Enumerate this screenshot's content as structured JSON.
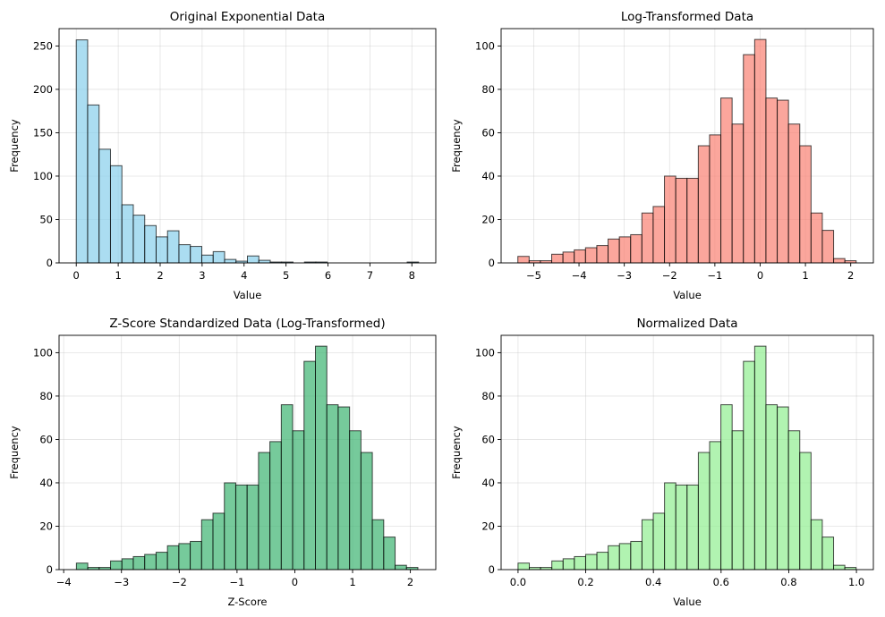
{
  "chart_data": [
    {
      "type": "bar",
      "title": "Original Exponential Data",
      "xlabel": "Value",
      "ylabel": "Frequency",
      "color": "#87ceeb",
      "bin_start": 0.0,
      "bin_width": 0.272,
      "values": [
        257,
        182,
        131,
        112,
        67,
        55,
        43,
        30,
        37,
        21,
        19,
        9,
        13,
        4,
        2,
        8,
        3,
        1,
        1,
        0,
        1,
        1,
        0,
        0,
        0,
        0,
        0,
        0,
        0,
        1
      ],
      "xlim": [
        -0.41,
        8.57
      ],
      "ylim": [
        0,
        270
      ],
      "xticks": [
        0,
        1,
        2,
        3,
        4,
        5,
        6,
        7,
        8
      ],
      "yticks": [
        0,
        50,
        100,
        150,
        200,
        250
      ],
      "grid": true
    },
    {
      "type": "bar",
      "title": "Log-Transformed Data",
      "xlabel": "Value",
      "ylabel": "Frequency",
      "color": "#fa8072",
      "bin_start": -5.35,
      "bin_width": 0.249,
      "values": [
        3,
        1,
        1,
        4,
        5,
        6,
        7,
        8,
        11,
        12,
        13,
        23,
        26,
        40,
        39,
        39,
        54,
        59,
        76,
        64,
        96,
        103,
        76,
        75,
        64,
        54,
        23,
        15,
        2,
        1
      ],
      "xlim": [
        -5.72,
        2.5
      ],
      "ylim": [
        0,
        108
      ],
      "xticks": [
        -5,
        -4,
        -3,
        -2,
        -1,
        0,
        1,
        2
      ],
      "yticks": [
        0,
        20,
        40,
        60,
        80,
        100
      ],
      "grid": true
    },
    {
      "type": "bar",
      "title": "Z-Score Standardized Data (Log-Transformed)",
      "xlabel": "Z-Score",
      "ylabel": "Frequency",
      "color": "#3cb371",
      "bin_start": -3.78,
      "bin_width": 0.197,
      "values": [
        3,
        1,
        1,
        4,
        5,
        6,
        7,
        8,
        11,
        12,
        13,
        23,
        26,
        40,
        39,
        39,
        54,
        59,
        76,
        64,
        96,
        103,
        76,
        75,
        64,
        54,
        23,
        15,
        2,
        1
      ],
      "xlim": [
        -4.08,
        2.44
      ],
      "ylim": [
        0,
        108
      ],
      "xticks": [
        -4,
        -3,
        -2,
        -1,
        0,
        1,
        2
      ],
      "yticks": [
        0,
        20,
        40,
        60,
        80,
        100
      ],
      "grid": true
    },
    {
      "type": "bar",
      "title": "Normalized Data",
      "xlabel": "Value",
      "ylabel": "Frequency",
      "color": "#90ee90",
      "bin_start": 0.0,
      "bin_width": 0.0333,
      "values": [
        3,
        1,
        1,
        4,
        5,
        6,
        7,
        8,
        11,
        12,
        13,
        23,
        26,
        40,
        39,
        39,
        54,
        59,
        76,
        64,
        96,
        103,
        76,
        75,
        64,
        54,
        23,
        15,
        2,
        1
      ],
      "xlim": [
        -0.05,
        1.05
      ],
      "ylim": [
        0,
        108
      ],
      "xticks": [
        0.0,
        0.2,
        0.4,
        0.6,
        0.8,
        1.0
      ],
      "xtick_labels": [
        "0.0",
        "0.2",
        "0.4",
        "0.6",
        "0.8",
        "1.0"
      ],
      "yticks": [
        0,
        20,
        40,
        60,
        80,
        100
      ],
      "grid": true
    }
  ]
}
